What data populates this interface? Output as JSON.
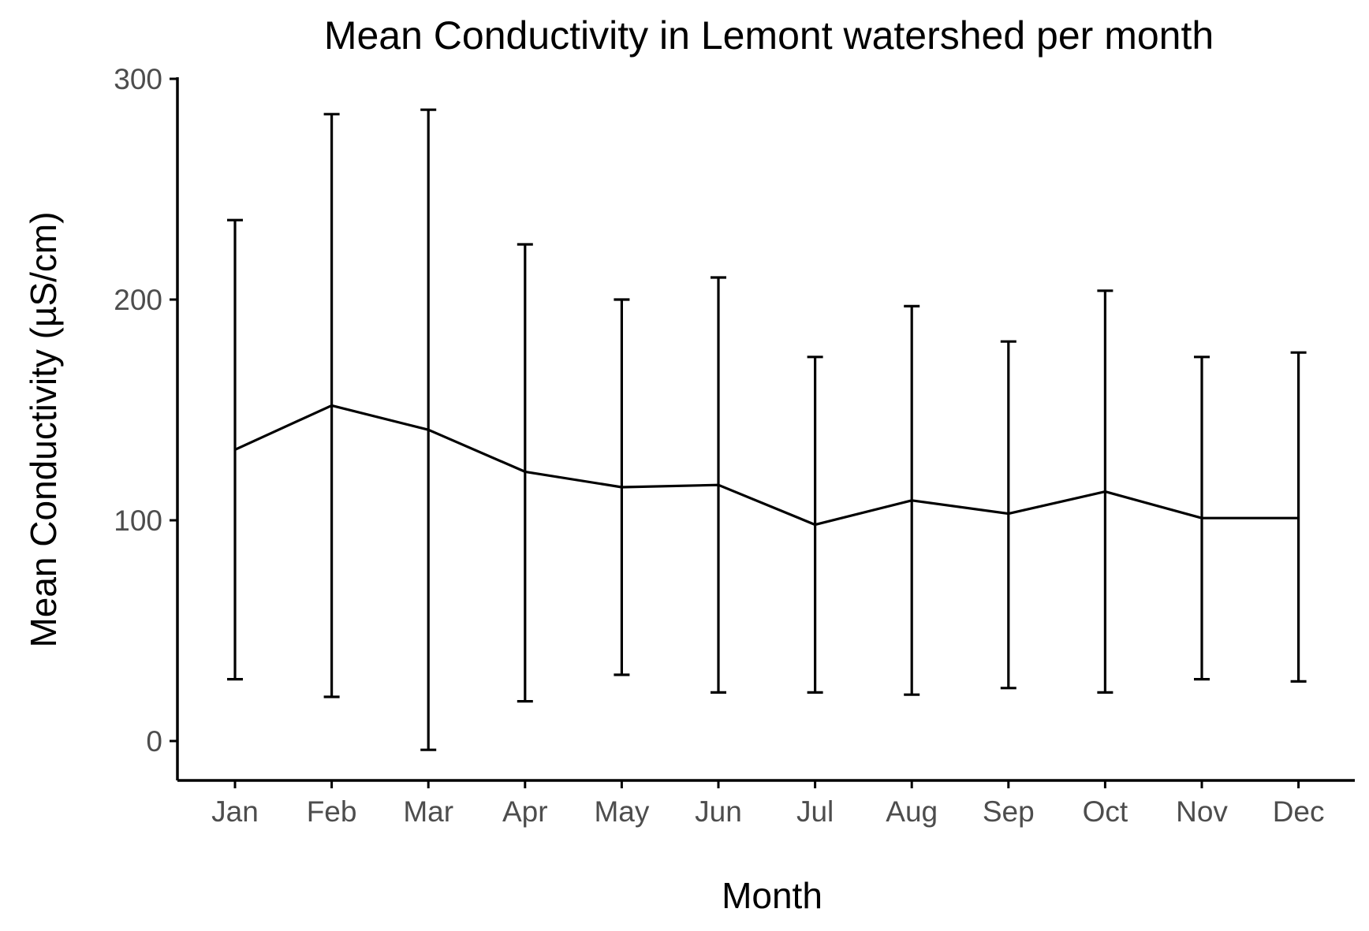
{
  "chart_data": {
    "type": "line",
    "title": "Mean Conductivity in Lemont watershed per month",
    "xlabel": "Month",
    "ylabel": "Mean Conductivity (µS/cm)",
    "categories": [
      "Jan",
      "Feb",
      "Mar",
      "Apr",
      "May",
      "Jun",
      "Jul",
      "Aug",
      "Sep",
      "Oct",
      "Nov",
      "Dec"
    ],
    "series": [
      {
        "values": [
          132,
          152,
          141,
          122,
          115,
          116,
          98,
          109,
          103,
          113,
          101,
          101
        ],
        "error_upper": [
          236,
          284,
          286,
          225,
          200,
          210,
          174,
          197,
          181,
          204,
          174,
          176
        ],
        "error_lower": [
          28,
          20,
          -4,
          18,
          30,
          22,
          22,
          21,
          24,
          22,
          28,
          27
        ]
      }
    ],
    "yticks": [
      0,
      100,
      200,
      300
    ],
    "ylim": [
      -18,
      302
    ],
    "grid": false,
    "legend": "none",
    "color": "#000000"
  }
}
